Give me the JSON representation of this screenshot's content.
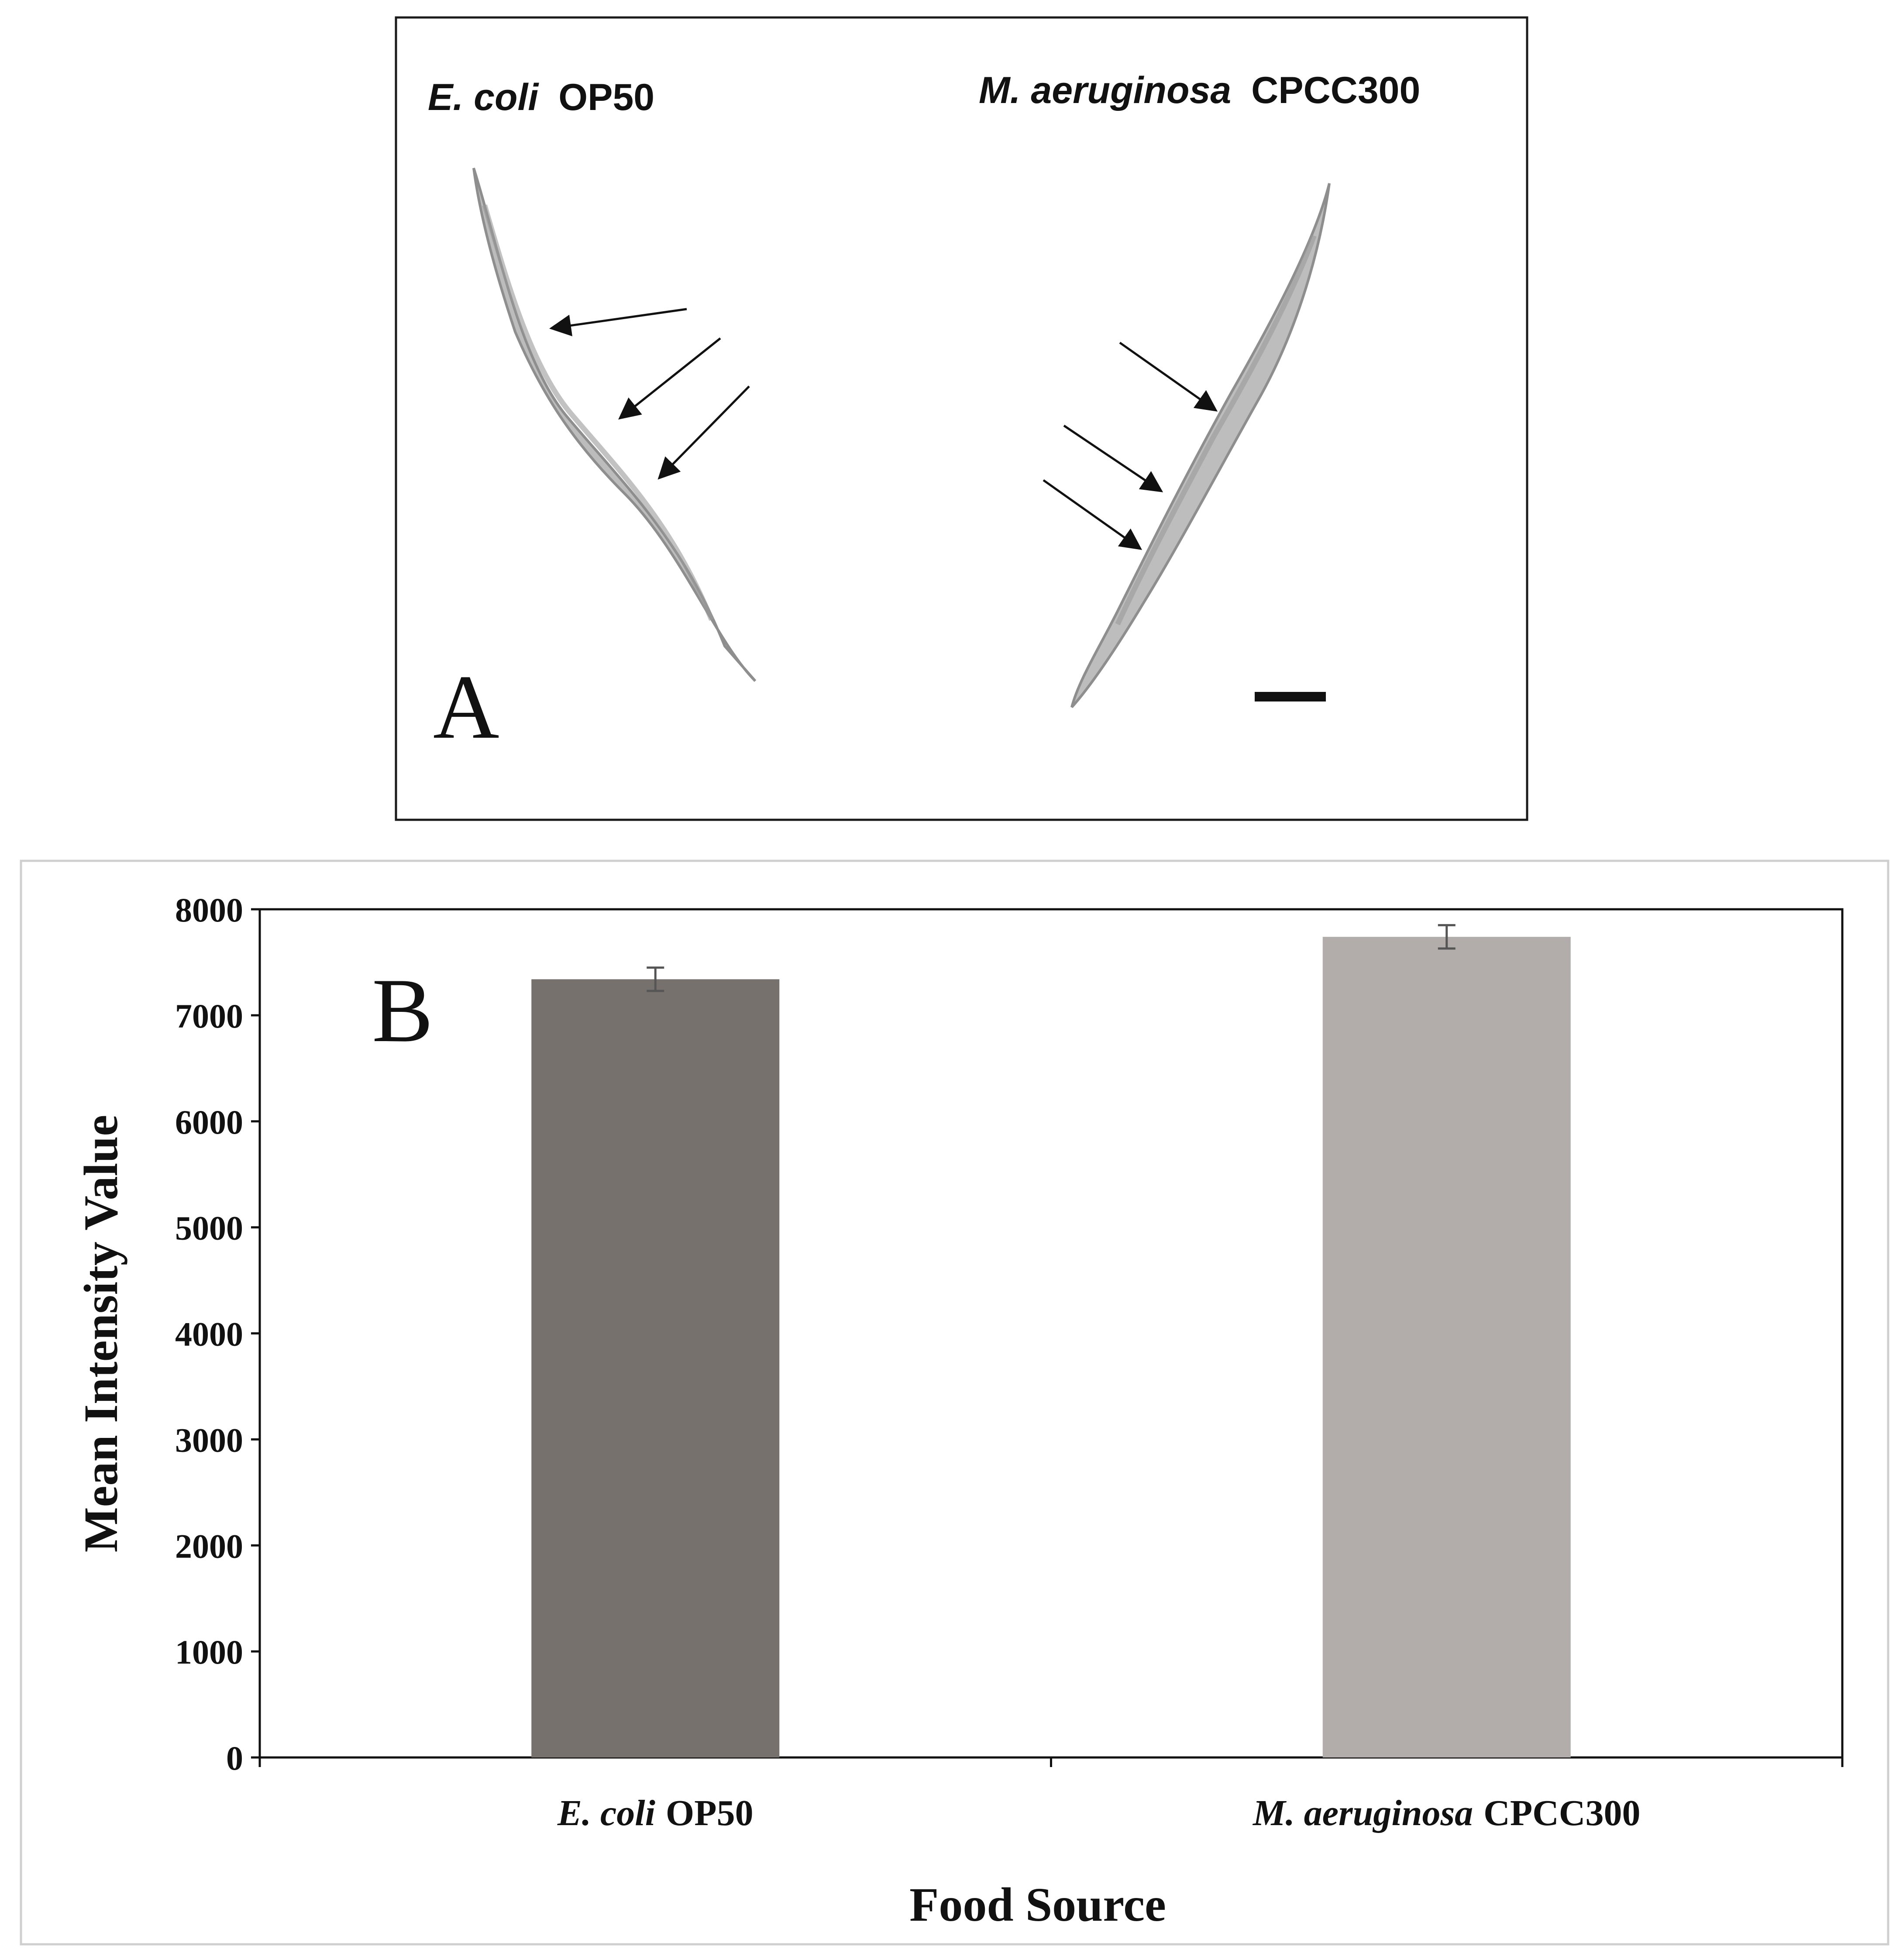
{
  "panel_a": {
    "letter": "A",
    "left_label": {
      "italic": "E. coli",
      "plain": "OP50"
    },
    "right_label": {
      "italic": "M. aeruginosa",
      "plain": "CPCC300"
    }
  },
  "chart_data": {
    "type": "bar",
    "panel_letter": "B",
    "categories": [
      {
        "italic": "E. coli",
        "plain": "OP50"
      },
      {
        "italic": "M. aeruginosa",
        "plain": "CPCC300"
      }
    ],
    "values": [
      7340,
      7740
    ],
    "errors": [
      110,
      110
    ],
    "bar_colors": [
      "#77716e",
      "#b2adaa"
    ],
    "ylim": [
      0,
      8000
    ],
    "yticks": [
      "0",
      "1000",
      "2000",
      "3000",
      "4000",
      "5000",
      "6000",
      "7000",
      "8000"
    ],
    "ylabel": "Mean Intensity Value",
    "xlabel": "Food Source",
    "grid": false,
    "legend": "none"
  }
}
